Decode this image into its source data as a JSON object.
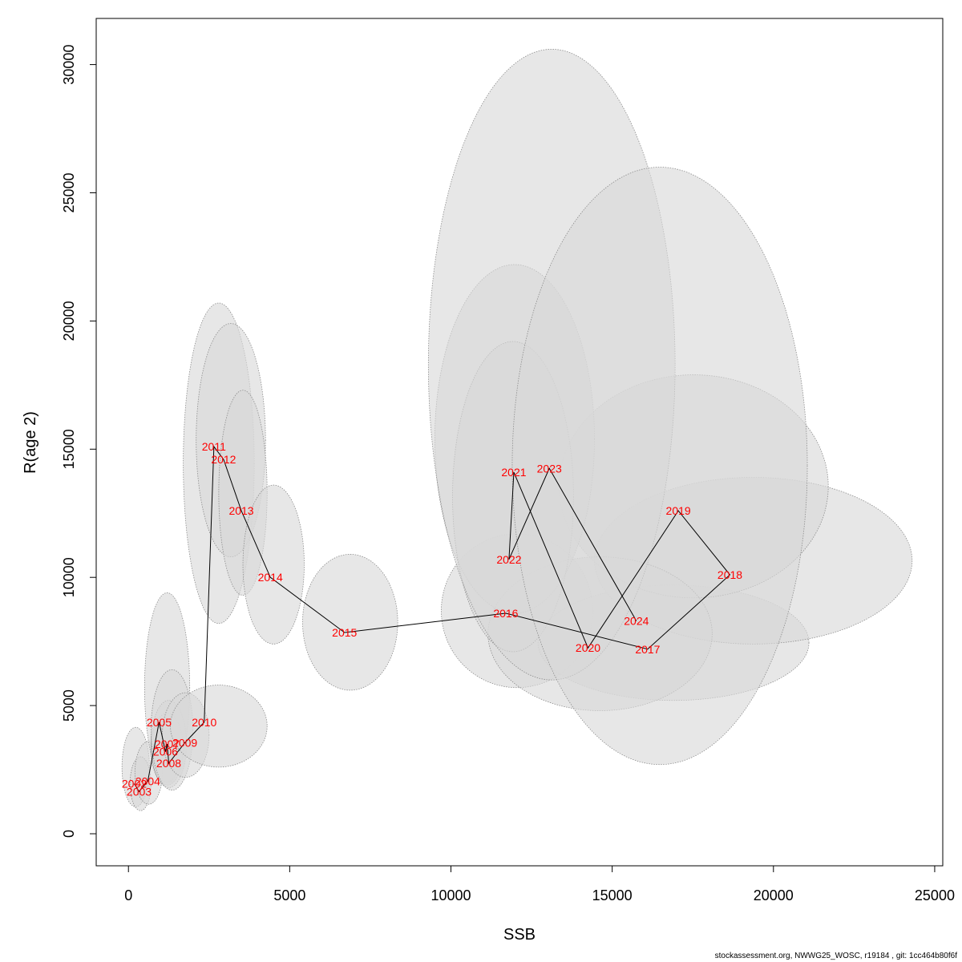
{
  "chart_data": {
    "type": "scatter",
    "title": "",
    "xlabel": "SSB",
    "ylabel": "R(age 2)",
    "xlim": [
      -1000,
      25250
    ],
    "ylim": [
      -1250,
      31800
    ],
    "xticks": [
      0,
      5000,
      10000,
      15000,
      20000,
      25000
    ],
    "yticks": [
      0,
      5000,
      10000,
      15000,
      20000,
      25000,
      30000
    ],
    "colors": {
      "ellipse_fill": "#d9d9d9",
      "ellipse_stroke": "#8c8c8c",
      "path": "#000000",
      "labels": "#ff0000"
    },
    "points": [
      {
        "year": "2002",
        "x": 180,
        "y": 1950,
        "ex": [
          -200,
          650
        ],
        "ey": [
          1050,
          4150
        ]
      },
      {
        "year": "2003",
        "x": 330,
        "y": 1650,
        "ex": [
          50,
          700
        ],
        "ey": [
          900,
          3000
        ]
      },
      {
        "year": "2004",
        "x": 600,
        "y": 2050,
        "ex": [
          200,
          1050
        ],
        "ey": [
          1150,
          3600
        ]
      },
      {
        "year": "2005",
        "x": 950,
        "y": 4350,
        "ex": [
          500,
          1900
        ],
        "ey": [
          2000,
          9400
        ]
      },
      {
        "year": "2006",
        "x": 1150,
        "y": 3200,
        "ex": [
          700,
          1700
        ],
        "ey": [
          1900,
          4700
        ]
      },
      {
        "year": "2007",
        "x": 1200,
        "y": 3500,
        "ex": [
          700,
          1800
        ],
        "ey": [
          1800,
          5200
        ]
      },
      {
        "year": "2008",
        "x": 1250,
        "y": 2750,
        "ex": [
          700,
          2000
        ],
        "ey": [
          1700,
          6400
        ]
      },
      {
        "year": "2009",
        "x": 1750,
        "y": 3550,
        "ex": [
          1050,
          2500
        ],
        "ey": [
          2200,
          5500
        ]
      },
      {
        "year": "2010",
        "x": 2350,
        "y": 4350,
        "ex": [
          1300,
          4300
        ],
        "ey": [
          2600,
          5800
        ]
      },
      {
        "year": "2011",
        "x": 2650,
        "y": 15100,
        "ex": [
          1700,
          3900
        ],
        "ey": [
          8200,
          20700
        ]
      },
      {
        "year": "2012",
        "x": 2950,
        "y": 14600,
        "ex": [
          2100,
          4250
        ],
        "ey": [
          10800,
          19900
        ]
      },
      {
        "year": "2013",
        "x": 3500,
        "y": 12600,
        "ex": [
          2800,
          4300
        ],
        "ey": [
          9300,
          17300
        ]
      },
      {
        "year": "2014",
        "x": 4400,
        "y": 10000,
        "ex": [
          3550,
          5450
        ],
        "ey": [
          7400,
          13600
        ]
      },
      {
        "year": "2015",
        "x": 6700,
        "y": 7850,
        "ex": [
          5400,
          8350
        ],
        "ey": [
          5600,
          10900
        ]
      },
      {
        "year": "2016",
        "x": 11700,
        "y": 8600,
        "ex": [
          9700,
          14400
        ],
        "ey": [
          5700,
          11700
        ]
      },
      {
        "year": "2017",
        "x": 16100,
        "y": 7200,
        "ex": [
          12700,
          21100
        ],
        "ey": [
          5200,
          9700
        ]
      },
      {
        "year": "2018",
        "x": 18650,
        "y": 10100,
        "ex": [
          14450,
          24300
        ],
        "ey": [
          7400,
          13900
        ]
      },
      {
        "year": "2019",
        "x": 17050,
        "y": 12600,
        "ex": [
          13350,
          21700
        ],
        "ey": [
          9200,
          17900
        ]
      },
      {
        "year": "2020",
        "x": 14250,
        "y": 7250,
        "ex": [
          11150,
          18100
        ],
        "ey": [
          4800,
          10800
        ]
      },
      {
        "year": "2021",
        "x": 11950,
        "y": 14100,
        "ex": [
          9500,
          14450
        ],
        "ey": [
          8600,
          22200
        ]
      },
      {
        "year": "2022",
        "x": 11800,
        "y": 10700,
        "ex": [
          10050,
          13800
        ],
        "ey": [
          7100,
          19200
        ]
      },
      {
        "year": "2023",
        "x": 13050,
        "y": 14250,
        "ex": [
          9300,
          16950
        ],
        "ey": [
          6000,
          30600
        ]
      },
      {
        "year": "2024",
        "x": 15750,
        "y": 8300,
        "ex": [
          11900,
          21050
        ],
        "ey": [
          2700,
          26000
        ]
      }
    ]
  },
  "footer": "stockassessment.org, NWWG25_WOSC, r19184 , git: 1cc464b80f6f"
}
